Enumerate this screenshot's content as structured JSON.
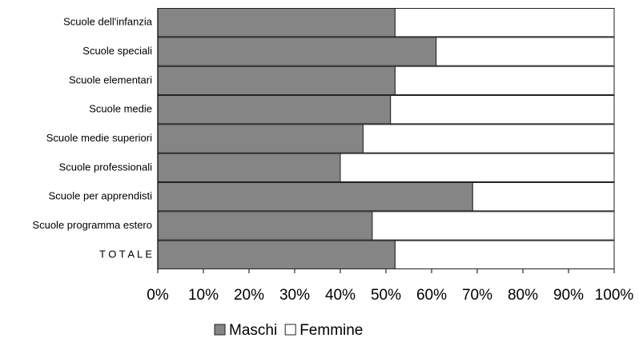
{
  "chart_data": {
    "type": "bar",
    "orientation": "horizontal",
    "stacked": true,
    "categories": [
      "Scuole dell'infanzia",
      "Scuole speciali",
      "Scuole elementari",
      "Scuole medie",
      "Scuole medie superiori",
      "Scuole professionali",
      "Scuole per apprendisti",
      "Scuole programma estero",
      "T O T A L E"
    ],
    "series": [
      {
        "name": "Maschi",
        "color": "#858585",
        "values": [
          52,
          61,
          52,
          51,
          45,
          40,
          69,
          47,
          52
        ]
      },
      {
        "name": "Femmine",
        "color": "#ffffff",
        "values": [
          48,
          39,
          48,
          49,
          55,
          60,
          31,
          53,
          48
        ]
      }
    ],
    "xlim": [
      0,
      100
    ],
    "xticks": [
      {
        "value": 0,
        "label": "0%"
      },
      {
        "value": 10,
        "label": "10%"
      },
      {
        "value": 20,
        "label": "20%"
      },
      {
        "value": 30,
        "label": "30%"
      },
      {
        "value": 40,
        "label": "40%"
      },
      {
        "value": 50,
        "label": "50%"
      },
      {
        "value": 60,
        "label": "60%"
      },
      {
        "value": 70,
        "label": "70%"
      },
      {
        "value": 80,
        "label": "80%"
      },
      {
        "value": 90,
        "label": "90%"
      },
      {
        "value": 100,
        "label": "100%"
      }
    ],
    "legend": "bottom"
  }
}
